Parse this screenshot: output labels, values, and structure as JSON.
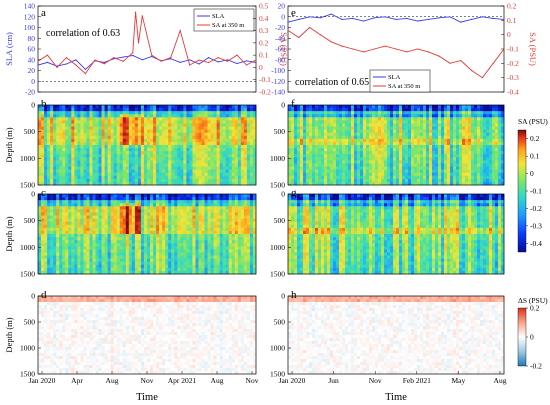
{
  "colors": {
    "sla": "#3a3ae6",
    "sa": "#e63a3a",
    "diverging": [
      "#0a0a96",
      "#0a3cff",
      "#1e9bff",
      "#2fd8c8",
      "#7ce66a",
      "#f0e63a",
      "#ffa21e",
      "#e2321e",
      "#7a0a0a"
    ],
    "diff": [
      "#1f78b4",
      "#9ecae1",
      "#ffffff",
      "#fca58a",
      "#d7301f"
    ]
  },
  "chart_data": [
    {
      "id": "a",
      "type": "line",
      "panel_label": "a",
      "annotation": "correlation of 0.63",
      "ylabel": "SLA (cm)",
      "ylabel_right": "SA (PSU)",
      "ylim": [
        -20,
        140
      ],
      "yticks": [
        "-20",
        "0",
        "20",
        "40",
        "60",
        "80",
        "100",
        "120",
        "140"
      ],
      "ylim_right": [
        -0.2,
        0.5
      ],
      "yticks_right": [
        "-0.2",
        "-0.1",
        "0",
        "0.1",
        "0.2",
        "0.3",
        "0.4",
        "0.5"
      ],
      "xlim": [
        0,
        23
      ],
      "zero_line": 0,
      "legend": [
        "SLA",
        "SA at 350 m"
      ],
      "series": [
        {
          "name": "SLA",
          "axis": "left",
          "x": [
            0,
            1,
            2,
            3,
            4,
            5,
            6,
            7,
            8,
            9,
            10,
            11,
            12,
            13,
            14,
            15,
            16,
            17,
            18,
            19,
            20,
            21,
            22,
            23
          ],
          "y": [
            30,
            35,
            28,
            32,
            40,
            22,
            38,
            35,
            42,
            45,
            48,
            40,
            46,
            38,
            42,
            35,
            40,
            32,
            44,
            36,
            40,
            33,
            38,
            35
          ]
        },
        {
          "name": "SA at 350 m",
          "axis": "right",
          "x": [
            0,
            1,
            2,
            3,
            4,
            5,
            6,
            7,
            8,
            9,
            10,
            10.3,
            10.6,
            11,
            12,
            13,
            14,
            15,
            16,
            17,
            18,
            19,
            20,
            21,
            22,
            23
          ],
          "y": [
            0.05,
            0.1,
            0.0,
            0.08,
            0.02,
            -0.05,
            0.06,
            0.03,
            0.08,
            0.05,
            0.12,
            0.45,
            0.2,
            0.42,
            0.1,
            0.05,
            0.08,
            0.3,
            0.02,
            0.06,
            0.04,
            0.08,
            0.05,
            0.1,
            0.02,
            0.06
          ]
        }
      ]
    },
    {
      "id": "e",
      "type": "line",
      "panel_label": "e",
      "annotation": "correlation of 0.65",
      "ylabel": "",
      "ylabel_right": "SA (PSU)",
      "ylim": [
        -140,
        20
      ],
      "yticks": [
        "-140",
        "-120",
        "-100",
        "-80",
        "-60",
        "-40",
        "-20",
        "0",
        "20"
      ],
      "ylim_right": [
        -0.4,
        0.2
      ],
      "yticks_right": [
        "-0.4",
        "-0.3",
        "-0.2",
        "-0.1",
        "0",
        "0.1",
        "0.2"
      ],
      "xlim": [
        0,
        20
      ],
      "zero_line": 0,
      "legend": [
        "SLA",
        "SA at 350 m"
      ],
      "series": [
        {
          "name": "SLA",
          "axis": "left",
          "x": [
            0,
            1,
            2,
            3,
            4,
            5,
            6,
            7,
            8,
            9,
            10,
            11,
            12,
            13,
            14,
            15,
            16,
            17,
            18,
            19,
            20
          ],
          "y": [
            -10,
            -5,
            0,
            -2,
            5,
            -5,
            -3,
            -8,
            -2,
            0,
            -5,
            -3,
            -8,
            -5,
            -2,
            0,
            -10,
            -5,
            0,
            -3,
            -5
          ]
        },
        {
          "name": "SA at 350 m",
          "axis": "right",
          "x": [
            0,
            1,
            2,
            3,
            4,
            5,
            6,
            7,
            8,
            9,
            10,
            11,
            12,
            13,
            14,
            15,
            16,
            17,
            18,
            19,
            20
          ],
          "y": [
            0.03,
            -0.02,
            0.05,
            0.0,
            -0.05,
            -0.08,
            -0.1,
            -0.12,
            -0.1,
            -0.08,
            -0.1,
            -0.12,
            -0.1,
            -0.12,
            -0.15,
            -0.2,
            -0.18,
            -0.25,
            -0.3,
            -0.2,
            -0.1
          ]
        }
      ]
    },
    {
      "id": "b",
      "type": "heatmap",
      "panel_label": "b",
      "ylabel": "Depth (m)",
      "ylim": [
        1500,
        0
      ],
      "yticks": [
        "0",
        "500",
        "1000",
        "1500"
      ],
      "variant": "sa"
    },
    {
      "id": "c",
      "type": "heatmap",
      "panel_label": "c",
      "ylabel": "Depth (m)",
      "ylim": [
        1500,
        0
      ],
      "yticks": [
        "0",
        "500",
        "1000",
        "1500"
      ],
      "variant": "sa"
    },
    {
      "id": "d",
      "type": "heatmap",
      "panel_label": "d",
      "ylabel": "Depth (m)",
      "ylim": [
        1500,
        0
      ],
      "yticks": [
        "0",
        "500",
        "1000",
        "1500"
      ],
      "variant": "diff"
    },
    {
      "id": "f",
      "type": "heatmap",
      "panel_label": "f",
      "ylabel": "",
      "ylim": [
        1500,
        0
      ],
      "yticks": [
        "0",
        "500",
        "1000",
        "1500"
      ],
      "variant": "sa"
    },
    {
      "id": "g",
      "type": "heatmap",
      "panel_label": "g",
      "ylabel": "",
      "ylim": [
        1500,
        0
      ],
      "yticks": [
        "0",
        "500",
        "1000",
        "1500"
      ],
      "variant": "sa"
    },
    {
      "id": "h",
      "type": "heatmap",
      "panel_label": "h",
      "ylabel": "",
      "ylim": [
        1500,
        0
      ],
      "yticks": [
        "0",
        "500",
        "1000",
        "1500"
      ],
      "variant": "diff"
    }
  ],
  "colorbars": [
    {
      "id": "sa",
      "title": "SA (PSU)",
      "range": [
        -0.4,
        0.3
      ],
      "ticks": [
        "0.2",
        "0.1",
        "0",
        "-0.1",
        "-0.2",
        "-0.3",
        "-0.4"
      ]
    },
    {
      "id": "diff",
      "title": "ΔS (PSU)",
      "range": [
        -0.2,
        0.2
      ],
      "ticks": [
        "0.2",
        "0",
        "-0.2"
      ]
    }
  ],
  "xaxis_left": {
    "ticks": [
      "Jan 2020",
      "Apr",
      "Aug",
      "Nov",
      "Apr 2021",
      "Aug",
      "Nov"
    ],
    "label": "Time"
  },
  "xaxis_right": {
    "ticks": [
      "Jan 2020",
      "Jun",
      "Nov",
      "Feb 2021",
      "May",
      "Aug"
    ],
    "label": "Time"
  }
}
